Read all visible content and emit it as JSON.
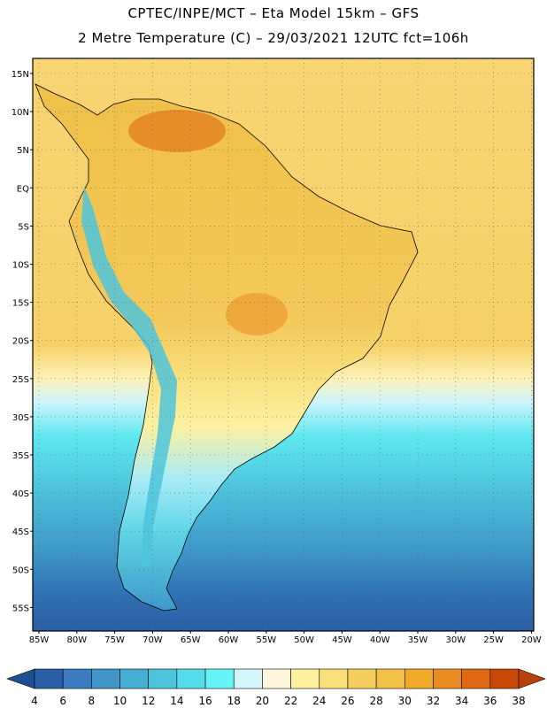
{
  "header": {
    "title_line1": "CPTEC/INPE/MCT –  Eta Model 15km – GFS",
    "title_line2": "2 Metre Temperature (C) – 29/03/2021 12UTC fct=106h"
  },
  "map": {
    "lat_labels": [
      "15N",
      "10N",
      "5N",
      "EQ",
      "5S",
      "10S",
      "15S",
      "20S",
      "25S",
      "30S",
      "35S",
      "40S",
      "45S",
      "50S",
      "55S"
    ],
    "lon_labels": [
      "85W",
      "80W",
      "75W",
      "70W",
      "65W",
      "60W",
      "55W",
      "50W",
      "45W",
      "40W",
      "35W",
      "30W",
      "25W",
      "20W"
    ]
  },
  "colorbar": {
    "ticks": [
      "4",
      "6",
      "8",
      "10",
      "12",
      "14",
      "16",
      "18",
      "20",
      "22",
      "24",
      "26",
      "28",
      "30",
      "32",
      "34",
      "36",
      "38"
    ],
    "colors": [
      "#2a5fa6",
      "#3a7cbf",
      "#3f95c8",
      "#46aed2",
      "#4dc4dc",
      "#56dbe8",
      "#66f5f6",
      "#d2f6fc",
      "#fdf8dd",
      "#fdf1a0",
      "#f8df7a",
      "#f5cf5e",
      "#f0c048",
      "#f0aa2a",
      "#ea8c24",
      "#e06a14",
      "#c84808"
    ],
    "lower_cap": "#1f4f93",
    "upper_cap": "#b8400a"
  }
}
